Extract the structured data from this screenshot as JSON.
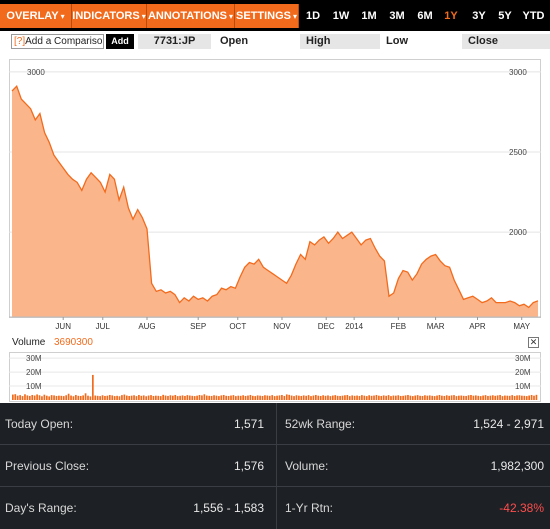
{
  "toolbar": {
    "menus": [
      {
        "label": "OVERLAY",
        "name": "overlay-menu"
      },
      {
        "label": "INDICATORS",
        "name": "indicators-menu"
      },
      {
        "label": "ANNOTATIONS",
        "name": "annotations-menu"
      },
      {
        "label": "SETTINGS",
        "name": "settings-menu"
      }
    ],
    "ranges": [
      "1D",
      "1W",
      "1M",
      "3M",
      "6M",
      "1Y",
      "3Y",
      "5Y",
      "YTD"
    ],
    "active_range": "1Y",
    "caret": "▾"
  },
  "comparison": {
    "input_marker": "[?]",
    "input_label": "Add a Comparison",
    "add_label": "Add",
    "ticker": "7731:JP",
    "open_label": "Open",
    "high_label": "High",
    "low_label": "Low",
    "close_label": "Close"
  },
  "colors": {
    "accent": "#f26b1d",
    "area_fill": "#fbb58b",
    "area_line": "#f26b1d",
    "panel_bg": "#1d2024",
    "negative": "#ff4d4d"
  },
  "chart_data": {
    "type": "area",
    "yticks": [
      2000,
      2500,
      3000
    ],
    "ylim": [
      1470,
      3080
    ],
    "x_labels": [
      "JUN",
      "JUL",
      "AUG",
      "SEP",
      "OCT",
      "NOV",
      "DEC",
      "2014",
      "FEB",
      "MAR",
      "APR",
      "MAY"
    ],
    "x_label_pos": [
      11,
      19.5,
      29,
      40,
      48.5,
      58,
      67.5,
      73.5,
      83,
      91,
      100,
      109.5
    ],
    "x_max": 113,
    "values": [
      [
        0,
        2880
      ],
      [
        1,
        2910
      ],
      [
        2,
        2830
      ],
      [
        3,
        2800
      ],
      [
        4,
        2770
      ],
      [
        5,
        2700
      ],
      [
        6,
        2740
      ],
      [
        7,
        2620
      ],
      [
        8,
        2560
      ],
      [
        9,
        2480
      ],
      [
        10,
        2440
      ],
      [
        11,
        2400
      ],
      [
        12,
        2360
      ],
      [
        13,
        2330
      ],
      [
        14,
        2310
      ],
      [
        15,
        2260
      ],
      [
        16,
        2330
      ],
      [
        17,
        2370
      ],
      [
        18,
        2340
      ],
      [
        19,
        2310
      ],
      [
        20,
        2250
      ],
      [
        21,
        2360
      ],
      [
        22,
        2330
      ],
      [
        23,
        2200
      ],
      [
        24,
        2280
      ],
      [
        25,
        2150
      ],
      [
        26,
        2080
      ],
      [
        27,
        2140
      ],
      [
        28,
        2090
      ],
      [
        29,
        2020
      ],
      [
        30,
        1680
      ],
      [
        31,
        1630
      ],
      [
        32,
        1640
      ],
      [
        33,
        1620
      ],
      [
        34,
        1630
      ],
      [
        35,
        1610
      ],
      [
        36,
        1560
      ],
      [
        37,
        1590
      ],
      [
        38,
        1570
      ],
      [
        39,
        1600
      ],
      [
        40,
        1580
      ],
      [
        41,
        1590
      ],
      [
        42,
        1570
      ],
      [
        43,
        1600
      ],
      [
        44,
        1610
      ],
      [
        45,
        1650
      ],
      [
        46,
        1640
      ],
      [
        47,
        1660
      ],
      [
        48,
        1650
      ],
      [
        49,
        1720
      ],
      [
        50,
        1780
      ],
      [
        51,
        1810
      ],
      [
        52,
        1800
      ],
      [
        53,
        1830
      ],
      [
        54,
        1780
      ],
      [
        55,
        1760
      ],
      [
        56,
        1740
      ],
      [
        57,
        1720
      ],
      [
        58,
        1700
      ],
      [
        59,
        1680
      ],
      [
        60,
        1730
      ],
      [
        61,
        1800
      ],
      [
        62,
        1860
      ],
      [
        63,
        1830
      ],
      [
        64,
        1940
      ],
      [
        65,
        1920
      ],
      [
        66,
        1950
      ],
      [
        67,
        1970
      ],
      [
        68,
        1930
      ],
      [
        69,
        1960
      ],
      [
        70,
        2000
      ],
      [
        71,
        1960
      ],
      [
        72,
        1980
      ],
      [
        73,
        2000
      ],
      [
        74,
        1960
      ],
      [
        75,
        1920
      ],
      [
        76,
        1950
      ],
      [
        77,
        1960
      ],
      [
        78,
        1900
      ],
      [
        79,
        1850
      ],
      [
        80,
        1820
      ],
      [
        81,
        1600
      ],
      [
        82,
        1620
      ],
      [
        83,
        1710
      ],
      [
        84,
        1760
      ],
      [
        85,
        1750
      ],
      [
        86,
        1700
      ],
      [
        87,
        1740
      ],
      [
        88,
        1800
      ],
      [
        89,
        1830
      ],
      [
        90,
        1850
      ],
      [
        91,
        1860
      ],
      [
        92,
        1820
      ],
      [
        93,
        1790
      ],
      [
        94,
        1780
      ],
      [
        95,
        1700
      ],
      [
        96,
        1640
      ],
      [
        97,
        1580
      ],
      [
        98,
        1590
      ],
      [
        99,
        1600
      ],
      [
        100,
        1580
      ],
      [
        101,
        1560
      ],
      [
        102,
        1570
      ],
      [
        103,
        1590
      ],
      [
        104,
        1560
      ],
      [
        105,
        1560
      ],
      [
        106,
        1560
      ],
      [
        107,
        1570
      ],
      [
        108,
        1560
      ],
      [
        109,
        1540
      ],
      [
        110,
        1550
      ],
      [
        111,
        1530
      ],
      [
        112,
        1560
      ],
      [
        113,
        1571
      ]
    ]
  },
  "volume": {
    "label": "Volume",
    "value": "3690300",
    "close_glyph": "✕",
    "yticks": [
      "30M",
      "20M",
      "10M"
    ],
    "ylim_millions": [
      0,
      33
    ],
    "bars_millions": [
      3.9,
      4.2,
      3.1,
      3.5,
      2.8,
      4.1,
      3.3,
      2.9,
      3.6,
      3.2,
      4.0,
      3.4,
      2.7,
      3.8,
      3.1,
      2.6,
      3.5,
      3.3,
      2.9,
      3.1,
      3.0,
      2.8,
      3.4,
      4.5,
      3.2,
      2.7,
      3.6,
      3.0,
      2.9,
      3.3,
      4.8,
      3.1,
      2.6,
      3.7,
      3.2,
      3.0,
      2.8,
      3.4,
      2.9,
      3.1,
      3.6,
      3.3,
      2.8,
      3.0,
      2.7,
      3.5,
      3.9,
      3.2,
      2.9,
      3.1,
      3.4,
      2.8,
      3.6,
      3.0,
      3.3,
      2.7,
      3.2,
      3.5,
      2.9,
      3.1,
      3.0,
      2.8,
      3.7,
      3.2,
      2.9,
      3.4,
      3.1,
      3.6,
      2.8,
      3.0,
      3.3,
      2.9,
      3.5,
      3.2,
      3.0,
      2.8,
      3.1,
      3.6,
      3.3,
      4.1,
      3.2,
      3.0,
      2.9,
      3.4,
      3.1,
      2.8,
      3.3,
      3.6,
      3.0,
      2.9,
      3.2,
      3.5,
      2.8,
      3.1,
      3.0,
      3.4,
      2.9,
      3.2,
      3.6,
      3.0,
      2.8,
      3.3,
      3.1,
      2.9,
      3.4,
      3.2,
      3.0,
      3.5,
      2.8,
      3.1,
      3.3,
      3.6,
      2.9,
      4.0,
      3.7,
      3.2,
      2.8,
      3.4,
      3.1,
      2.9,
      3.3,
      3.0,
      3.5,
      2.8,
      3.2,
      3.6,
      3.1,
      2.9,
      3.4,
      3.0,
      3.3,
      2.8,
      3.2,
      3.5,
      3.0,
      2.9,
      3.1,
      3.4,
      3.6,
      2.8,
      3.3,
      3.0,
      3.2,
      2.9,
      3.5,
      3.1,
      2.8,
      3.4,
      3.0,
      3.2,
      3.6,
      3.1,
      2.9,
      3.3,
      3.0,
      3.5,
      2.8,
      3.2,
      3.1,
      3.4,
      2.9,
      3.0,
      3.3,
      3.6,
      3.1,
      2.8,
      3.2,
      3.5,
      3.0,
      2.9,
      3.4,
      3.1,
      3.3,
      3.0,
      2.8,
      3.2,
      3.6,
      3.1,
      2.9,
      3.4,
      3.0,
      3.3,
      3.5,
      2.8,
      3.1,
      3.2,
      3.0,
      2.9,
      3.4,
      3.6,
      3.1,
      3.3,
      3.0,
      2.8,
      3.2,
      3.5,
      2.9,
      3.1,
      3.4,
      3.0,
      3.3,
      3.6,
      2.8,
      3.2,
      3.1,
      3.0,
      3.5,
      2.9,
      3.3,
      3.4,
      3.1,
      3.0,
      2.8,
      3.2,
      3.6,
      3.1,
      3.7
    ],
    "spike": {
      "index": 33,
      "millions": 18
    }
  },
  "stats": [
    {
      "label": "Today Open:",
      "value": "1,571",
      "label2": "52wk Range:",
      "value2": "1,524 - 2,971",
      "neg2": false
    },
    {
      "label": "Previous Close:",
      "value": "1,576",
      "label2": "Volume:",
      "value2": "1,982,300",
      "neg2": false
    },
    {
      "label": "Day's Range:",
      "value": "1,556 - 1,583",
      "label2": "1-Yr Rtn:",
      "value2": "-42.38%",
      "neg2": true
    }
  ]
}
